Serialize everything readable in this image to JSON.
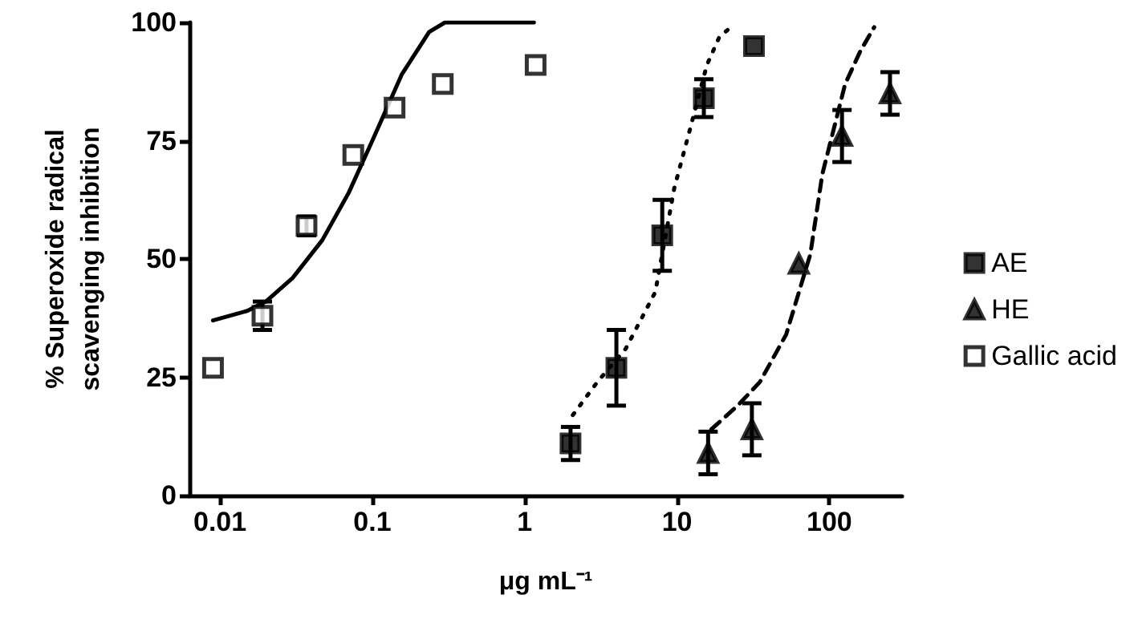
{
  "chart_data": {
    "type": "scatter",
    "xlabel": "μg mL⁻¹",
    "ylabel": "% Superoxide radical\nscavenging inhibition",
    "log": "x",
    "xlim": [
      0.0063,
      300
    ],
    "xticks": [
      0.01,
      0.1,
      1,
      10,
      100
    ],
    "ylim": [
      0,
      100
    ],
    "yticks": [
      0,
      25,
      50,
      75,
      100
    ],
    "grid": false,
    "legend": "right",
    "series": [
      {
        "name": "AE",
        "color": "#000000",
        "marker": "square",
        "x": [
          2,
          4,
          8,
          15,
          32
        ],
        "values": [
          11,
          27,
          55,
          84,
          95
        ],
        "errors": [
          3.5,
          8,
          7.5,
          4,
          null
        ]
      },
      {
        "name": "HE",
        "color": "#000000",
        "marker": "triangle",
        "x": [
          16,
          31,
          63,
          121,
          250
        ],
        "values": [
          9,
          14,
          49,
          76,
          85
        ],
        "errors": [
          4.5,
          5.5,
          null,
          5.5,
          4.5
        ]
      },
      {
        "name": "Gallic acid",
        "color": "#ffffff",
        "marker": "square",
        "x": [
          0.009,
          0.019,
          0.037,
          0.075,
          0.14,
          0.29,
          1.18
        ],
        "values": [
          27,
          38,
          57,
          72,
          82,
          87,
          91
        ],
        "errors": [
          null,
          3,
          2,
          null,
          null,
          null,
          null
        ]
      },
      {
        "type": "line",
        "color": "#000000",
        "line_style": "dotted",
        "marker": "none",
        "x": [
          2.07,
          3,
          4.6,
          7.2,
          9.6,
          12.3,
          15.7,
          19,
          22.6
        ],
        "values": [
          17,
          24,
          31,
          43,
          65,
          78,
          91,
          97,
          99
        ]
      },
      {
        "type": "line",
        "color": "#000000",
        "line_style": "dashed",
        "marker": "none",
        "x": [
          16.8,
          25,
          35,
          52,
          75,
          90,
          127,
          160,
          197
        ],
        "values": [
          14,
          19,
          24,
          34,
          51,
          68,
          87,
          94,
          99
        ]
      },
      {
        "type": "line",
        "color": "#000000",
        "line_style": "solid",
        "marker": "none",
        "x": [
          0.009,
          0.015,
          0.02,
          0.03,
          0.047,
          0.07,
          0.1,
          0.156,
          0.236,
          0.3,
          0.5,
          1.15
        ],
        "values": [
          37,
          39,
          41,
          46,
          54,
          64,
          75,
          89,
          98,
          100,
          100,
          100
        ]
      }
    ]
  }
}
